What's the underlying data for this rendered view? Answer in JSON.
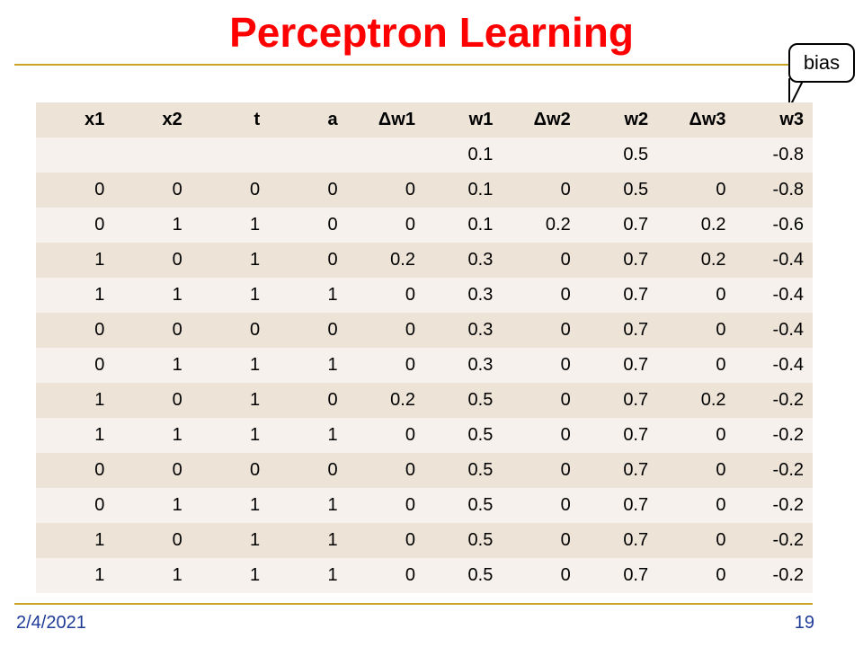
{
  "slide": {
    "title": "Perceptron Learning",
    "callout": "bias",
    "date": "2/4/2021",
    "page_number": "19"
  },
  "colors": {
    "title": "#ff0000",
    "rule": "#c9a227",
    "header_row": "#ede3d7",
    "row_dark": "#ede3d7",
    "row_light": "#f6f1ec",
    "footer_text": "#1f3c99"
  },
  "table": {
    "headers": [
      "x1",
      "x2",
      "t",
      "a",
      "Δw1",
      "w1",
      "Δw2",
      "w2",
      "Δw3",
      "w3"
    ],
    "rows": [
      [
        "",
        "",
        "",
        "",
        "",
        "0.1",
        "",
        "0.5",
        "",
        "-0.8"
      ],
      [
        "0",
        "0",
        "0",
        "0",
        "0",
        "0.1",
        "0",
        "0.5",
        "0",
        "-0.8"
      ],
      [
        "0",
        "1",
        "1",
        "0",
        "0",
        "0.1",
        "0.2",
        "0.7",
        "0.2",
        "-0.6"
      ],
      [
        "1",
        "0",
        "1",
        "0",
        "0.2",
        "0.3",
        "0",
        "0.7",
        "0.2",
        "-0.4"
      ],
      [
        "1",
        "1",
        "1",
        "1",
        "0",
        "0.3",
        "0",
        "0.7",
        "0",
        "-0.4"
      ],
      [
        "0",
        "0",
        "0",
        "0",
        "0",
        "0.3",
        "0",
        "0.7",
        "0",
        "-0.4"
      ],
      [
        "0",
        "1",
        "1",
        "1",
        "0",
        "0.3",
        "0",
        "0.7",
        "0",
        "-0.4"
      ],
      [
        "1",
        "0",
        "1",
        "0",
        "0.2",
        "0.5",
        "0",
        "0.7",
        "0.2",
        "-0.2"
      ],
      [
        "1",
        "1",
        "1",
        "1",
        "0",
        "0.5",
        "0",
        "0.7",
        "0",
        "-0.2"
      ],
      [
        "0",
        "0",
        "0",
        "0",
        "0",
        "0.5",
        "0",
        "0.7",
        "0",
        "-0.2"
      ],
      [
        "0",
        "1",
        "1",
        "1",
        "0",
        "0.5",
        "0",
        "0.7",
        "0",
        "-0.2"
      ],
      [
        "1",
        "0",
        "1",
        "1",
        "0",
        "0.5",
        "0",
        "0.7",
        "0",
        "-0.2"
      ],
      [
        "1",
        "1",
        "1",
        "1",
        "0",
        "0.5",
        "0",
        "0.7",
        "0",
        "-0.2"
      ]
    ]
  }
}
